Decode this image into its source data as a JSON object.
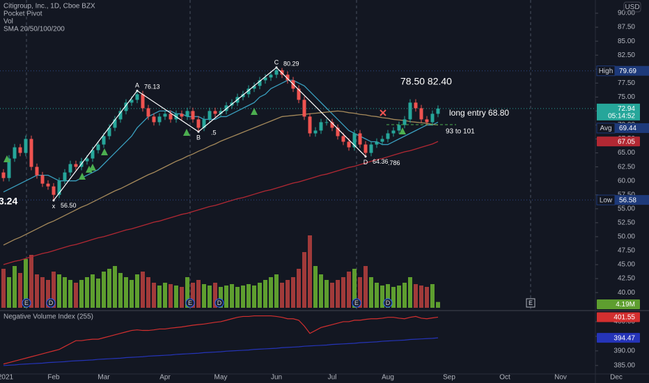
{
  "chart_data": {
    "type": "candlestick",
    "title": "Citigroup, Inc., 1D, Cboe BZX",
    "indicators": [
      "Pocket Pivot",
      "Vol",
      "SMA 20/50/100/200"
    ],
    "currency": "USD",
    "categories": [
      "2021",
      null,
      null,
      null,
      null,
      null,
      null,
      null,
      null,
      "Feb",
      null,
      null,
      null,
      null,
      null,
      null,
      null,
      null,
      "Mar",
      null,
      null,
      null,
      null,
      null,
      null,
      null,
      null,
      null,
      null,
      "Apr",
      null,
      null,
      null,
      null,
      null,
      null,
      null,
      null,
      null,
      "May",
      null,
      null,
      null,
      null,
      null,
      null,
      null,
      null,
      null,
      "Jun",
      null,
      null,
      null,
      null,
      null,
      null,
      null,
      null,
      null,
      "Jul",
      null,
      null,
      null,
      null,
      null,
      null,
      null,
      null,
      null,
      "Aug",
      null,
      null,
      null,
      null,
      null,
      null,
      null,
      null,
      null
    ],
    "future_categories": [
      "Sep",
      "Oct",
      "Nov",
      "Dec"
    ],
    "open": [
      61.5,
      60.5,
      64,
      66,
      65,
      67.5,
      62.5,
      61,
      59.5,
      59,
      57.5,
      60,
      61.5,
      63,
      62.5,
      63.5,
      64,
      65.5,
      66.5,
      68,
      69.5,
      71,
      72.5,
      74,
      74.5,
      75.5,
      73,
      71.5,
      70.5,
      71.5,
      72,
      71,
      72,
      71.5,
      72.5,
      71,
      69.5,
      71,
      72.5,
      72,
      72.5,
      73.5,
      74,
      75,
      75.5,
      76.5,
      77,
      78,
      78.5,
      79,
      79.8,
      79,
      78,
      76.5,
      74.5,
      71.5,
      68.5,
      69,
      70.5,
      70.5,
      69.5,
      68,
      67,
      66,
      68.5,
      66.5,
      65,
      66.5,
      67,
      67.5,
      68.5,
      69,
      70,
      71,
      74,
      73,
      71,
      70.5,
      72
    ],
    "high": [
      62.1,
      64.6,
      66.6,
      66.6,
      68.1,
      68.1,
      63.1,
      61.6,
      60.1,
      59.6,
      60.6,
      62.1,
      63.6,
      63.6,
      64.1,
      64.6,
      66.1,
      67.1,
      68.6,
      70.1,
      71.6,
      73.1,
      74.6,
      75.1,
      76.13,
      76.1,
      73.6,
      72.1,
      72.1,
      72.6,
      72.6,
      72.6,
      72.6,
      73.1,
      73.1,
      71.6,
      71.6,
      73.1,
      73.1,
      73.1,
      74.1,
      74.6,
      75.6,
      76.1,
      77.1,
      77.6,
      78.6,
      79.1,
      79.6,
      80.29,
      80.2,
      79.6,
      78.6,
      77.1,
      75.1,
      72.1,
      69.6,
      71.1,
      71.1,
      71.1,
      70.1,
      68.6,
      67.6,
      69.1,
      69.1,
      67.1,
      67.1,
      67.6,
      68.1,
      69.1,
      69.6,
      70.6,
      71.6,
      74.6,
      74.6,
      73.6,
      71.6,
      72.6,
      73.5
    ],
    "low": [
      59.9,
      59.9,
      63.4,
      64.4,
      64.4,
      61.9,
      60.4,
      58.9,
      58.4,
      56.5,
      56.9,
      59.4,
      60.9,
      61.9,
      61.9,
      62.9,
      63.4,
      64.9,
      65.9,
      67.4,
      68.9,
      70.4,
      71.9,
      73.4,
      73.9,
      72.4,
      70.9,
      69.9,
      69.9,
      70.9,
      70.4,
      70.4,
      70.9,
      70.9,
      70.4,
      68.8,
      68.9,
      70.4,
      71.4,
      71.4,
      71.9,
      72.9,
      73.4,
      74.4,
      74.9,
      75.9,
      76.4,
      77.4,
      77.9,
      78.4,
      78.4,
      77.4,
      75.9,
      73.9,
      70.9,
      67.9,
      67.9,
      68.4,
      69.9,
      68.9,
      67.4,
      66.4,
      65.4,
      65.4,
      65.9,
      64.36,
      64.4,
      65.9,
      66.4,
      66.9,
      67.9,
      68.4,
      69.4,
      70.4,
      72.4,
      70.4,
      69.9,
      69.9,
      71.4
    ],
    "close": [
      60.5,
      64,
      66,
      65,
      67.5,
      62.5,
      61,
      59.5,
      59,
      57.5,
      60,
      61.5,
      63,
      62.5,
      63.5,
      64,
      65.5,
      66.5,
      68,
      69.5,
      71,
      72.5,
      74,
      74.5,
      75.5,
      73,
      71.5,
      70.5,
      71.5,
      72,
      71,
      72,
      71.5,
      72.5,
      71,
      69.5,
      71,
      72.5,
      72,
      72.5,
      73.5,
      74,
      75,
      75.5,
      76.5,
      77,
      78,
      78.5,
      79,
      79.8,
      79,
      78,
      76.5,
      74.5,
      71.5,
      68.5,
      69,
      70.5,
      70.5,
      69.5,
      68,
      67,
      66,
      68.5,
      66.5,
      65,
      66.5,
      67,
      67.5,
      68.5,
      69,
      70,
      71,
      74,
      73,
      71,
      70.5,
      72,
      72.94
    ],
    "up_color": "#26a69a",
    "down_color": "#ef5350",
    "countdown": "05:14:52",
    "ylim": [
      36.9,
      92.37
    ],
    "yticks": [
      {
        "value": 40,
        "label": "40.00"
      },
      {
        "value": 42.5,
        "label": "42.50"
      },
      {
        "value": 45,
        "label": "45.00"
      },
      {
        "value": 47.5,
        "label": "47.50"
      },
      {
        "value": 50,
        "label": "50.00"
      },
      {
        "value": 52.5,
        "label": "52.50"
      },
      {
        "value": 55,
        "label": "55.00"
      },
      {
        "value": 57.5,
        "label": "57.50"
      },
      {
        "value": 60,
        "label": "60.00"
      },
      {
        "value": 62.5,
        "label": "62.50"
      },
      {
        "value": 65,
        "label": "65.00"
      },
      {
        "value": 67.5,
        "label": "67.50"
      },
      {
        "value": 70,
        "label": "70.00"
      },
      {
        "value": 72.5,
        "label": "72.50"
      },
      {
        "value": 75,
        "label": "75.00"
      },
      {
        "value": 77.5,
        "label": "77.50"
      },
      {
        "value": 80,
        "label": "80.00"
      },
      {
        "value": 82.5,
        "label": "82.50"
      },
      {
        "value": 85,
        "label": "85.00"
      },
      {
        "value": 87.5,
        "label": "87.50"
      },
      {
        "value": 90,
        "label": "90.00"
      }
    ],
    "volume": {
      "values": [
        28,
        22,
        30,
        25,
        35,
        38,
        24,
        22,
        20,
        26,
        24,
        22,
        20,
        18,
        20,
        22,
        24,
        21,
        26,
        28,
        30,
        25,
        22,
        20,
        24,
        26,
        22,
        18,
        16,
        18,
        17,
        16,
        15,
        22,
        18,
        20,
        17,
        16,
        18,
        15,
        16,
        17,
        15,
        16,
        17,
        16,
        18,
        20,
        22,
        24,
        18,
        20,
        22,
        28,
        40,
        52,
        30,
        24,
        20,
        18,
        20,
        22,
        26,
        28,
        22,
        30,
        22,
        18,
        16,
        17,
        15,
        16,
        18,
        22,
        17,
        16,
        15,
        17,
        4.19
      ],
      "value_labels": [
        null,
        null,
        null,
        null,
        null,
        null,
        null,
        null,
        null,
        null,
        null,
        null,
        null,
        null,
        null,
        null,
        null,
        null,
        null,
        null,
        null,
        null,
        null,
        null,
        null,
        null,
        null,
        null,
        null,
        null,
        null,
        null,
        null,
        null,
        null,
        null,
        null,
        null,
        null,
        null,
        null,
        null,
        null,
        null,
        null,
        null,
        null,
        null,
        null,
        null,
        null,
        null,
        null,
        null,
        null,
        null,
        null,
        null,
        null,
        null,
        null,
        null,
        null,
        null,
        null,
        null,
        null,
        null,
        null,
        null,
        null,
        null,
        null,
        null,
        null,
        null,
        null,
        null,
        "4.19M"
      ],
      "up_color": "#5e9e2f",
      "down_color": "#a13a3a"
    },
    "sma": [
      {
        "color": "#3a9fbf",
        "values": [
          58,
          58.5,
          59,
          59.5,
          60,
          60.5,
          61,
          61,
          61,
          60.5,
          60,
          60,
          60,
          60,
          60.5,
          61,
          61.5,
          62,
          63,
          64,
          65,
          66,
          67,
          68,
          69.5,
          70.5,
          71.5,
          72,
          72.5,
          72.5,
          72.5,
          72,
          72,
          71.5,
          71.5,
          71.5,
          71,
          71,
          71,
          71.5,
          71.5,
          72,
          72.5,
          73,
          73.5,
          74,
          75,
          75.5,
          76.5,
          77,
          77.5,
          78,
          78,
          77.5,
          77,
          76,
          75,
          74,
          73,
          72,
          71,
          70,
          69,
          68.5,
          68,
          67.5,
          67,
          67,
          66.5,
          66.5,
          67,
          67.5,
          68,
          68.5,
          69,
          69.5,
          70,
          70,
          70.5
        ]
      },
      {
        "color": "#a68a5b",
        "values": [
          48.5,
          49.0,
          49.5,
          49.9,
          50.4,
          50.9,
          51.4,
          51.9,
          52.4,
          52.8,
          53.3,
          53.8,
          54.3,
          54.8,
          55.3,
          55.7,
          56.2,
          56.7,
          57.2,
          57.7,
          58.2,
          58.6,
          59.1,
          59.6,
          60.1,
          60.6,
          61.1,
          61.5,
          62.0,
          62.5,
          63.0,
          63.5,
          63.9,
          64.4,
          64.8,
          65.3,
          65.7,
          66.2,
          66.6,
          67.1,
          67.5,
          67.9,
          68.3,
          68.7,
          69.1,
          69.5,
          69.9,
          70.3,
          70.7,
          71.1,
          71.5,
          71.6,
          71.7,
          71.8,
          71.9,
          72.0,
          72.1,
          72.2,
          72.3,
          72.4,
          72.5,
          72.4,
          72.2,
          72.1,
          71.9,
          71.8,
          71.6,
          71.5,
          71.3,
          71.2,
          71.0,
          70.9,
          70.8,
          70.6,
          70.5,
          70.4,
          70.3,
          70.1,
          70.0
        ]
      },
      {
        "color": "#b22833",
        "values": [
          45.0,
          45.3,
          45.6,
          45.8,
          46.1,
          46.4,
          46.7,
          47.0,
          47.2,
          47.5,
          47.8,
          48.1,
          48.4,
          48.6,
          48.9,
          49.2,
          49.5,
          49.8,
          50.0,
          50.3,
          50.6,
          50.9,
          51.2,
          51.4,
          51.7,
          52.0,
          52.3,
          52.6,
          52.8,
          53.1,
          53.4,
          53.7,
          54.0,
          54.2,
          54.5,
          54.8,
          55.1,
          55.4,
          55.6,
          55.9,
          56.2,
          56.5,
          56.8,
          57.0,
          57.3,
          57.6,
          57.9,
          58.2,
          58.4,
          58.7,
          59.0,
          59.3,
          59.6,
          59.8,
          60.1,
          60.4,
          60.7,
          61.0,
          61.2,
          61.5,
          61.8,
          62.1,
          62.4,
          62.6,
          62.9,
          63.2,
          63.5,
          63.8,
          64.0,
          64.3,
          64.6,
          64.9,
          65.2,
          65.4,
          65.7,
          66.0,
          66.3,
          66.6,
          67.05
        ],
        "badge": true
      }
    ],
    "levels": [
      {
        "label": "High",
        "value": 79.69,
        "line": true
      },
      {
        "label": "Avg",
        "value": 69.44,
        "line": false
      },
      {
        "label": "Low",
        "value": 56.58,
        "line": true
      }
    ],
    "pattern": [
      {
        "label": "x",
        "value": 56.5,
        "value_label": "56.50"
      },
      {
        "label": "A",
        "value": 76.13,
        "value_label": "76.13"
      },
      {
        "label": "B",
        "value": 68.8,
        "ratio": ".5"
      },
      {
        "label": "C",
        "value": 80.29,
        "value_label": "80.29"
      },
      {
        "label": "D",
        "value": 64.36,
        "value_label": "64.36",
        "ratio": ".786"
      }
    ],
    "annotations": {
      "targets": "78.50  82.40",
      "entry": "long entry  68.80",
      "range": "93 to 101",
      "edge_label": "3.24"
    },
    "events": [
      "E",
      "D",
      "E",
      "D",
      "E",
      "D",
      "E"
    ],
    "nvi": {
      "title": "Negative Volume Index (255)",
      "ylim": [
        382.1,
        403.33
      ],
      "yticks": [
        {
          "value": 385,
          "label": "385.00"
        },
        {
          "value": 390,
          "label": "390.00"
        },
        {
          "value": 395,
          "label": "395.00"
        },
        {
          "value": 400,
          "label": "400.00"
        }
      ],
      "series": [
        {
          "color": "#d32f2f",
          "values": [
            385.5,
            386,
            386.5,
            387,
            387.5,
            388,
            388.5,
            389,
            389.5,
            390,
            390.5,
            391.5,
            392.5,
            393.5,
            393.5,
            393.8,
            394,
            394,
            394.5,
            395,
            395.5,
            396,
            396.5,
            397,
            397.2,
            397,
            397,
            397.2,
            397.5,
            397.5,
            397.8,
            398,
            398.2,
            398.5,
            398.8,
            399,
            399.2,
            399.5,
            399.8,
            400,
            400.5,
            401,
            401.5,
            401.8,
            401.8,
            402,
            402,
            402,
            402,
            401.8,
            401.5,
            401,
            401,
            400.5,
            398.5,
            396,
            397,
            398,
            398.5,
            399,
            399.5,
            400,
            400,
            400.5,
            400.5,
            400.8,
            401,
            401,
            401.2,
            401.5,
            401.5,
            401.2,
            401,
            401.5,
            401.8,
            401.2,
            401,
            401.3,
            401.55
          ]
        },
        {
          "color": "#2534b8",
          "values": [
            385.0,
            385.1,
            385.2,
            385.4,
            385.5,
            385.6,
            385.7,
            385.8,
            386.0,
            386.1,
            386.2,
            386.3,
            386.5,
            386.6,
            386.7,
            386.8,
            386.9,
            387.1,
            387.2,
            387.3,
            387.4,
            387.5,
            387.7,
            387.8,
            387.9,
            388.0,
            388.2,
            388.3,
            388.4,
            388.5,
            388.6,
            388.8,
            388.9,
            389.0,
            389.1,
            389.2,
            389.4,
            389.5,
            389.6,
            389.7,
            389.9,
            390.0,
            390.1,
            390.2,
            390.3,
            390.5,
            390.6,
            390.7,
            390.8,
            390.9,
            391.1,
            391.2,
            391.3,
            391.4,
            391.6,
            391.7,
            391.8,
            391.9,
            392.0,
            392.2,
            392.3,
            392.4,
            392.5,
            392.6,
            392.8,
            392.9,
            393.0,
            393.1,
            393.3,
            393.4,
            393.5,
            393.6,
            393.7,
            393.9,
            394.0,
            394.1,
            394.2,
            394.3,
            394.47
          ]
        }
      ]
    }
  }
}
